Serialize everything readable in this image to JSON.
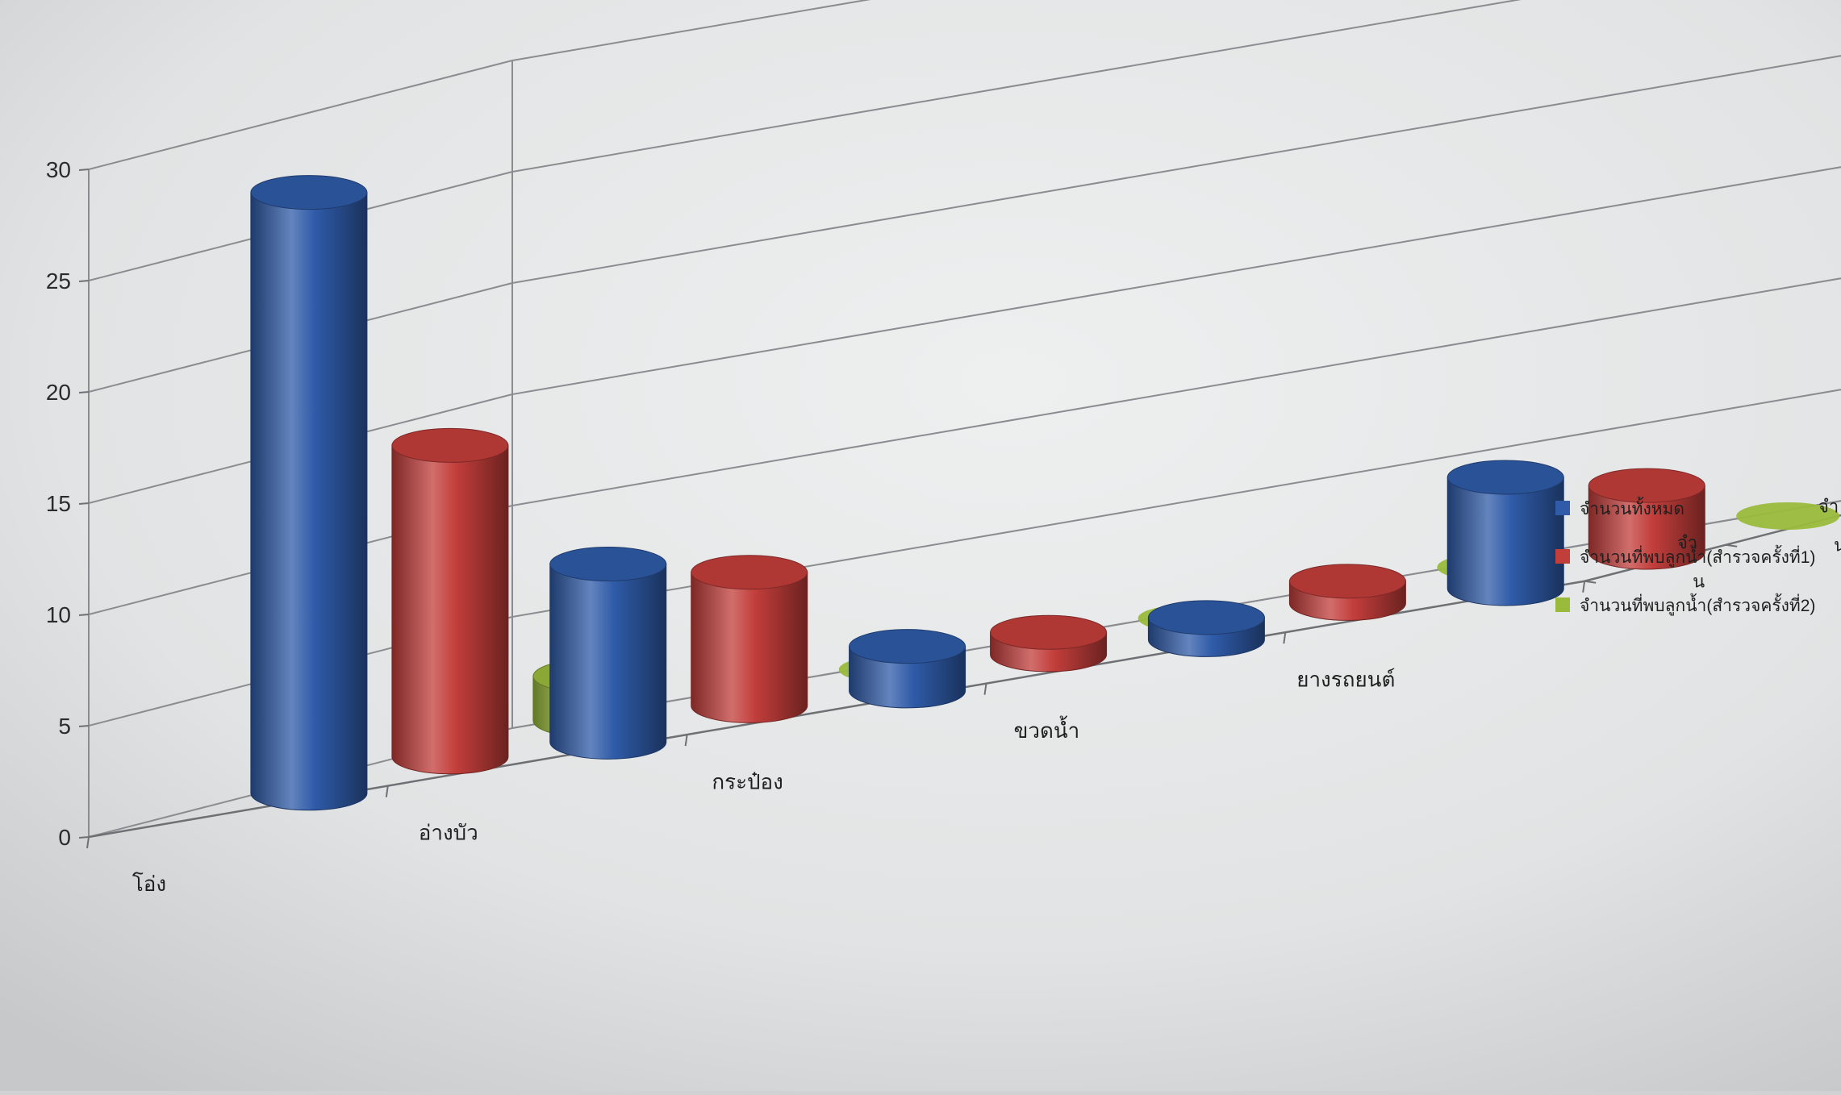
{
  "chart_data": {
    "type": "bar",
    "style": "3d-cylinder",
    "categories": [
      "โอ่ง",
      "อ่างบัว",
      "กระป๋อง",
      "ขวดน้ำ",
      "ยางรถยนต์"
    ],
    "series": [
      {
        "name": "จำนวนทั้งหมด",
        "color": "#2f5ba8",
        "values": [
          27,
          8,
          2,
          1,
          5
        ]
      },
      {
        "name": "จำนวนที่พบลูกน้ำ(สำรวจครั้งที่1)",
        "color": "#c23e3b",
        "values": [
          14,
          6,
          1,
          1,
          3
        ]
      },
      {
        "name": "จำนวนที่พบลูกน้ำ(สำรวจครั้งที่2)",
        "color": "#9aba3b",
        "values": [
          2,
          0,
          0,
          0,
          0
        ]
      }
    ],
    "depth_labels": [
      "จำ\nน",
      "จำ\nน",
      "จำ\nน"
    ],
    "y_ticks": [
      0,
      5,
      10,
      15,
      20,
      25,
      30
    ],
    "ylim": [
      0,
      30
    ],
    "legend_position": "right",
    "grid": true
  }
}
